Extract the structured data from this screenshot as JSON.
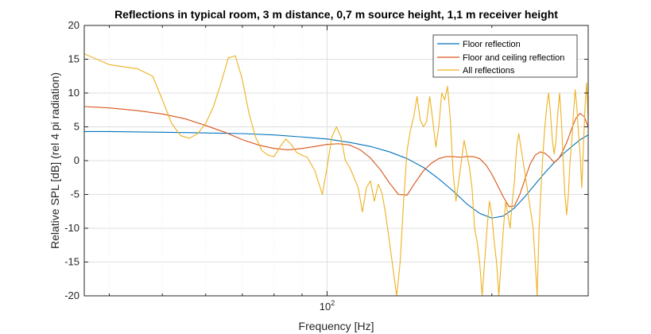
{
  "chart_data": {
    "type": "line",
    "title": "Reflections in typical room, 3 m distance, 0,7 m source height, 1,1 m receiver height",
    "xlabel": "Frequency [Hz]",
    "ylabel": "Relative SPL [dB] (rel 4 pi radiation)",
    "xscale": "log",
    "xlim": [
      36,
      300
    ],
    "ylim": [
      -20,
      20
    ],
    "x_ticks": [
      {
        "value": 100,
        "base": "10",
        "exp": "2"
      }
    ],
    "y_ticks": [
      -20,
      -15,
      -10,
      -5,
      0,
      5,
      10,
      15,
      20
    ],
    "grid": true,
    "legend_position": "top-right",
    "series": [
      {
        "name": "Floor reflection",
        "color": "#0072BD",
        "x": [
          36,
          40,
          50,
          60,
          70,
          80,
          90,
          100,
          110,
          120,
          130,
          140,
          150,
          160,
          170,
          180,
          190,
          200,
          210,
          220,
          230,
          240,
          250,
          260,
          270,
          280,
          290,
          300
        ],
        "y": [
          4.3,
          4.3,
          4.2,
          4.1,
          4.0,
          3.8,
          3.5,
          3.2,
          2.7,
          2.1,
          1.3,
          0.3,
          -1.0,
          -2.7,
          -4.5,
          -6.4,
          -7.8,
          -8.5,
          -8.2,
          -7.0,
          -5.3,
          -3.5,
          -1.8,
          -0.3,
          1.0,
          2.1,
          3.1,
          3.8
        ]
      },
      {
        "name": "Floor and ceiling reflection",
        "color": "#D95319",
        "x": [
          36,
          40,
          45,
          50,
          55,
          60,
          65,
          70,
          75,
          80,
          85,
          90,
          95,
          100,
          105,
          110,
          115,
          120,
          125,
          130,
          135,
          140,
          145,
          150,
          155,
          160,
          165,
          170,
          175,
          180,
          185,
          190,
          195,
          200,
          205,
          210,
          215,
          220,
          225,
          230,
          235,
          240,
          245,
          250,
          255,
          260,
          265,
          270,
          275,
          280,
          285,
          290,
          295,
          300
        ],
        "y": [
          8.0,
          7.8,
          7.4,
          6.9,
          6.2,
          5.2,
          4.2,
          3.1,
          2.3,
          1.8,
          1.6,
          1.8,
          2.1,
          2.4,
          2.5,
          2.3,
          1.6,
          0.4,
          -1.3,
          -3.3,
          -5.0,
          -5.1,
          -3.2,
          -1.5,
          -0.4,
          0.3,
          0.6,
          0.6,
          0.5,
          0.6,
          0.6,
          0.3,
          -0.6,
          -2.0,
          -3.7,
          -5.4,
          -6.8,
          -6.7,
          -5.0,
          -2.7,
          -0.5,
          0.8,
          1.3,
          1.1,
          0.5,
          -0.3,
          0.3,
          1.5,
          3.0,
          4.8,
          6.3,
          7.0,
          6.5,
          5.0
        ]
      },
      {
        "name": "All reflections",
        "color": "#EDB120",
        "x": [
          36,
          40,
          45,
          48,
          50,
          52,
          54,
          56,
          58,
          60,
          62,
          64,
          66,
          68,
          70,
          72,
          74,
          76,
          78,
          80,
          82,
          84,
          86,
          88,
          90,
          92,
          95,
          98,
          100,
          102,
          104,
          106,
          108,
          110,
          112,
          114,
          116,
          118,
          120,
          122,
          124,
          126,
          128,
          130,
          132,
          134,
          136,
          138,
          140,
          142,
          144,
          146,
          148,
          150,
          152,
          154,
          156,
          158,
          160,
          162,
          164,
          166,
          168,
          170,
          172,
          174,
          176,
          178,
          180,
          182,
          184,
          186,
          188,
          190,
          192,
          194,
          196,
          198,
          200,
          202,
          204,
          206,
          208,
          210,
          212,
          214,
          216,
          218,
          220,
          222,
          224,
          226,
          228,
          230,
          232,
          234,
          236,
          238,
          240,
          242,
          244,
          246,
          248,
          250,
          252,
          254,
          256,
          258,
          260,
          262,
          264,
          266,
          268,
          270,
          272,
          274,
          276,
          278,
          280,
          282,
          284,
          286,
          288,
          290,
          292,
          294,
          296,
          298,
          300
        ],
        "y": [
          15.8,
          14.2,
          13.6,
          12.5,
          9.0,
          5.5,
          3.7,
          3.3,
          4.0,
          5.5,
          8.0,
          11.5,
          15.2,
          15.5,
          12.0,
          7.0,
          3.5,
          1.5,
          0.8,
          0.6,
          2.0,
          3.2,
          2.4,
          1.2,
          0.8,
          0.5,
          -1.5,
          -5.0,
          -1.0,
          3.5,
          5.0,
          3.5,
          0.0,
          -1.0,
          -2.5,
          -4.0,
          -7.6,
          -4.0,
          -3.0,
          -6.0,
          -3.5,
          -4.8,
          -8.0,
          -12.0,
          -16.0,
          -20.0,
          -15.0,
          -6.0,
          1.5,
          4.5,
          6.5,
          9.5,
          6.0,
          5.0,
          5.8,
          9.5,
          6.0,
          2.0,
          5.0,
          10.0,
          9.0,
          11.0,
          6.0,
          -2.0,
          -6.0,
          -3.0,
          0.0,
          3.0,
          1.0,
          -1.0,
          -4.0,
          -10.0,
          -12.0,
          -15.0,
          -20.0,
          -15.0,
          -10.0,
          -6.0,
          -8.0,
          -12.0,
          -15.0,
          -20.0,
          -15.0,
          -10.0,
          -6.0,
          -8.0,
          -10.0,
          -6.0,
          -3.0,
          2.0,
          4.0,
          2.0,
          0.0,
          -2.0,
          -4.0,
          -6.0,
          -8.0,
          -10.0,
          -15.0,
          -20.0,
          -10.0,
          -4.0,
          1.0,
          5.0,
          8.0,
          10.0,
          7.0,
          3.0,
          1.0,
          3.0,
          7.0,
          10.0,
          6.0,
          0.0,
          -5.0,
          -8.0,
          -5.0,
          0.0,
          3.0,
          7.0,
          10.5,
          8.0,
          4.0,
          1.0,
          -4.0,
          2.0,
          8.0,
          11.5,
          6.0
        ]
      }
    ]
  }
}
